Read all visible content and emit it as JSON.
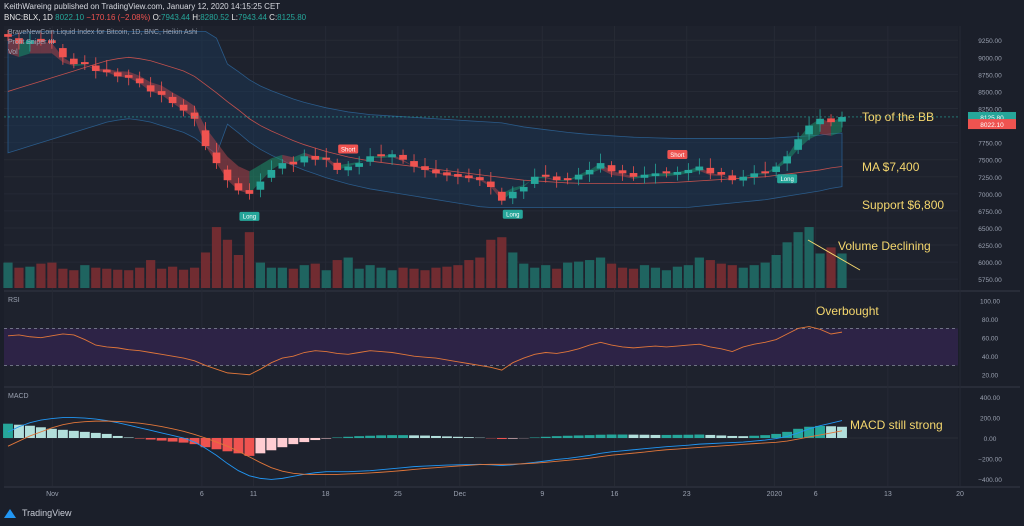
{
  "header": {
    "line1": "KeithWareing published on TradingView.com, January 12, 2020 14:15:25 CET",
    "symbol": "BNC:BLX, 1D",
    "price": "8022.10",
    "change": "−170.16 (−2.08%)",
    "o_label": "O:",
    "o_value": "7943.44",
    "h_label": "H:",
    "h_value": "8280.52",
    "l_label": "L:",
    "l_value": "7943.44",
    "c_label": "C:",
    "c_value": "8125.80"
  },
  "legend": {
    "title": "BraveNewCoin Liquid Index for Bitcoin, 1D, BNC, Heikin Ashi",
    "indicator": "Profit Sniper III",
    "vol": "Vol"
  },
  "footer": {
    "brand": "TradingView"
  },
  "colors": {
    "up": "#26a69a",
    "down": "#ef5350",
    "annotation": "#f5d76e",
    "rsi_band": "#2d2346",
    "bb_fill": "#1b3a5c"
  },
  "chart_data": [
    {
      "type": "candlestick",
      "title": "BraveNewCoin Liquid Index for Bitcoin, 1D, BNC, Heikin Ashi",
      "price_ticks": [
        5750,
        6000,
        6250,
        6500,
        6750,
        7000,
        7250,
        7500,
        7750,
        8000,
        8250,
        8500,
        8750,
        9000,
        9250
      ],
      "ylim": [
        5650,
        9400
      ],
      "x_ticks": [
        "Nov",
        "6",
        "11",
        "18",
        "25",
        "Dec",
        "9",
        "16",
        "23",
        "2020",
        "6",
        "13",
        "20"
      ],
      "last_price_labels": [
        "8125.80",
        "8022.10"
      ],
      "closes": [
        9300,
        9200,
        9250,
        9230,
        9210,
        9000,
        8900,
        8900,
        8800,
        8780,
        8720,
        8700,
        8620,
        8500,
        8450,
        8330,
        8220,
        8100,
        7700,
        7450,
        7200,
        7050,
        7000,
        7180,
        7350,
        7450,
        7430,
        7550,
        7500,
        7500,
        7350,
        7400,
        7450,
        7550,
        7550,
        7580,
        7500,
        7400,
        7350,
        7300,
        7270,
        7250,
        7230,
        7200,
        7100,
        6900,
        7030,
        7100,
        7250,
        7250,
        7200,
        7200,
        7280,
        7350,
        7450,
        7330,
        7300,
        7250,
        7280,
        7300,
        7300,
        7320,
        7350,
        7400,
        7300,
        7280,
        7200,
        7250,
        7300,
        7300,
        7400,
        7550,
        7800,
        8000,
        8100,
        8050,
        8125
      ],
      "ma": {
        "label": "MA $7,400",
        "values": [
          8500,
          8550,
          8600,
          8650,
          8700,
          8750,
          8800,
          8850,
          8900,
          8950,
          8980,
          9000,
          8980,
          8950,
          8900,
          8850,
          8800,
          8720,
          8600,
          8480,
          8350,
          8230,
          8100,
          8000,
          7920,
          7850,
          7780,
          7720,
          7670,
          7620,
          7580,
          7540,
          7510,
          7480,
          7460,
          7440,
          7420,
          7400,
          7380,
          7360,
          7340,
          7320,
          7300,
          7280,
          7260,
          7240,
          7220,
          7200,
          7190,
          7180,
          7170,
          7160,
          7155,
          7150,
          7150,
          7150,
          7150,
          7150,
          7155,
          7160,
          7165,
          7170,
          7180,
          7190,
          7200,
          7210,
          7220,
          7230,
          7240,
          7250,
          7270,
          7290,
          7310,
          7330,
          7350,
          7380,
          7400
        ]
      },
      "signals": [
        {
          "label": "Long",
          "index": 22
        },
        {
          "label": "Short",
          "index": 31
        },
        {
          "label": "Long",
          "index": 46
        },
        {
          "label": "Short",
          "index": 61
        },
        {
          "label": "Long",
          "index": 71
        }
      ],
      "annotations": {
        "top": "Top of the BB",
        "ma": "MA $7,400",
        "support": "Support $6,800",
        "volume": "Volume Declining"
      },
      "volume": [
        50,
        40,
        42,
        48,
        50,
        38,
        35,
        45,
        40,
        38,
        36,
        35,
        40,
        55,
        38,
        42,
        36,
        40,
        70,
        120,
        95,
        65,
        110,
        50,
        40,
        40,
        38,
        45,
        48,
        35,
        55,
        60,
        38,
        45,
        40,
        35,
        40,
        38,
        35,
        40,
        42,
        45,
        55,
        60,
        95,
        100,
        70,
        48,
        40,
        45,
        38,
        50,
        52,
        55,
        60,
        48,
        40,
        38,
        45,
        40,
        35,
        42,
        45,
        60,
        55,
        48,
        45,
        40,
        45,
        50,
        65,
        90,
        110,
        120,
        68,
        80,
        68
      ]
    },
    {
      "type": "line",
      "title": "RSI",
      "ylim": [
        10,
        105
      ],
      "y_ticks": [
        20,
        40,
        60,
        80,
        100
      ],
      "y_tick_labels": [
        "20.00",
        "40.00",
        "60.00",
        "80.00",
        "100.00"
      ],
      "band": [
        30,
        70
      ],
      "annotation": "Overbought",
      "values": [
        62,
        63,
        61,
        60,
        62,
        64,
        63,
        58,
        52,
        50,
        49,
        47,
        46,
        44,
        42,
        40,
        38,
        35,
        30,
        26,
        22,
        21,
        20,
        26,
        33,
        38,
        40,
        44,
        46,
        45,
        43,
        42,
        44,
        46,
        45,
        44,
        42,
        40,
        39,
        38,
        36,
        34,
        32,
        30,
        28,
        25,
        33,
        38,
        42,
        44,
        43,
        45,
        48,
        52,
        55,
        52,
        50,
        49,
        50,
        51,
        50,
        51,
        52,
        53,
        50,
        48,
        45,
        50,
        53,
        55,
        58,
        64,
        70,
        72,
        69,
        64,
        66
      ]
    },
    {
      "type": "bar",
      "title": "MACD",
      "ylim": [
        -450,
        450
      ],
      "y_ticks": [
        -400,
        -200,
        0,
        200,
        400
      ],
      "y_tick_labels": [
        "−400.00",
        "−200.00",
        "0.00",
        "200.00",
        "400.00"
      ],
      "annotation": "MACD still strong",
      "histogram": [
        140,
        130,
        120,
        105,
        90,
        80,
        70,
        60,
        50,
        40,
        20,
        5,
        -5,
        -15,
        -25,
        -35,
        -45,
        -60,
        -90,
        -110,
        -130,
        -150,
        -175,
        -150,
        -120,
        -90,
        -60,
        -40,
        -20,
        -5,
        5,
        12,
        18,
        22,
        26,
        28,
        28,
        26,
        24,
        20,
        16,
        12,
        8,
        3,
        -3,
        -10,
        -6,
        -2,
        5,
        12,
        18,
        22,
        25,
        28,
        32,
        34,
        34,
        33,
        32,
        30,
        30,
        31,
        32,
        34,
        30,
        25,
        20,
        18,
        22,
        28,
        40,
        60,
        90,
        110,
        118,
        115,
        110
      ],
      "macd": [
        60,
        110,
        150,
        175,
        190,
        200,
        200,
        195,
        185,
        170,
        150,
        125,
        100,
        75,
        50,
        25,
        0,
        -40,
        -100,
        -170,
        -250,
        -320,
        -370,
        -395,
        -405,
        -395,
        -375,
        -355,
        -340,
        -330,
        -330,
        -330,
        -325,
        -320,
        -310,
        -300,
        -290,
        -280,
        -275,
        -270,
        -265,
        -262,
        -260,
        -258,
        -262,
        -270,
        -262,
        -250,
        -238,
        -225,
        -210,
        -200,
        -185,
        -170,
        -150,
        -135,
        -125,
        -115,
        -105,
        -95,
        -85,
        -78,
        -70,
        -60,
        -55,
        -50,
        -45,
        -40,
        -30,
        -20,
        -5,
        15,
        50,
        90,
        120,
        145,
        170
      ],
      "signal": [
        -80,
        -30,
        20,
        60,
        100,
        130,
        150,
        160,
        165,
        165,
        162,
        155,
        145,
        130,
        112,
        90,
        65,
        35,
        0,
        -40,
        -80,
        -130,
        -185,
        -240,
        -290,
        -325,
        -345,
        -355,
        -358,
        -358,
        -356,
        -352,
        -348,
        -342,
        -335,
        -327,
        -318,
        -308,
        -298,
        -290,
        -282,
        -274,
        -267,
        -260,
        -258,
        -258,
        -256,
        -252,
        -246,
        -238,
        -228,
        -218,
        -208,
        -198,
        -183,
        -168,
        -158,
        -148,
        -138,
        -125,
        -115,
        -108,
        -100,
        -92,
        -85,
        -78,
        -70,
        -62,
        -55,
        -48,
        -42,
        -30,
        -10,
        10,
        30,
        50,
        70
      ]
    }
  ]
}
